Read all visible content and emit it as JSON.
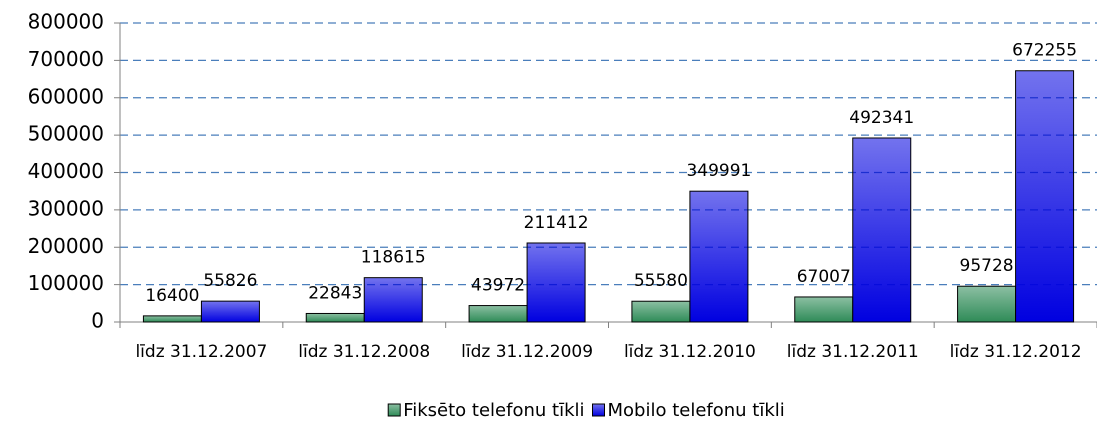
{
  "chart_data": {
    "type": "bar",
    "categories": [
      "līdz 31.12.2007",
      "līdz 31.12.2008",
      "līdz 31.12.2009",
      "līdz 31.12.2010",
      "līdz 31.12.2011",
      "līdz 31.12.2012"
    ],
    "series": [
      {
        "name": "Fiksēto telefonu tīkli",
        "color": "#2e8b57",
        "values": [
          16400,
          22843,
          43972,
          55580,
          67007,
          95728
        ]
      },
      {
        "name": "Mobilo telefonu tīkli",
        "color": "#0000e0",
        "values": [
          55826,
          118615,
          211412,
          349991,
          492341,
          672255
        ]
      }
    ],
    "ylim": [
      0,
      800000
    ],
    "yticks": [
      0,
      100000,
      200000,
      300000,
      400000,
      500000,
      600000,
      700000,
      800000
    ],
    "grid": true,
    "legend": "bottom"
  }
}
